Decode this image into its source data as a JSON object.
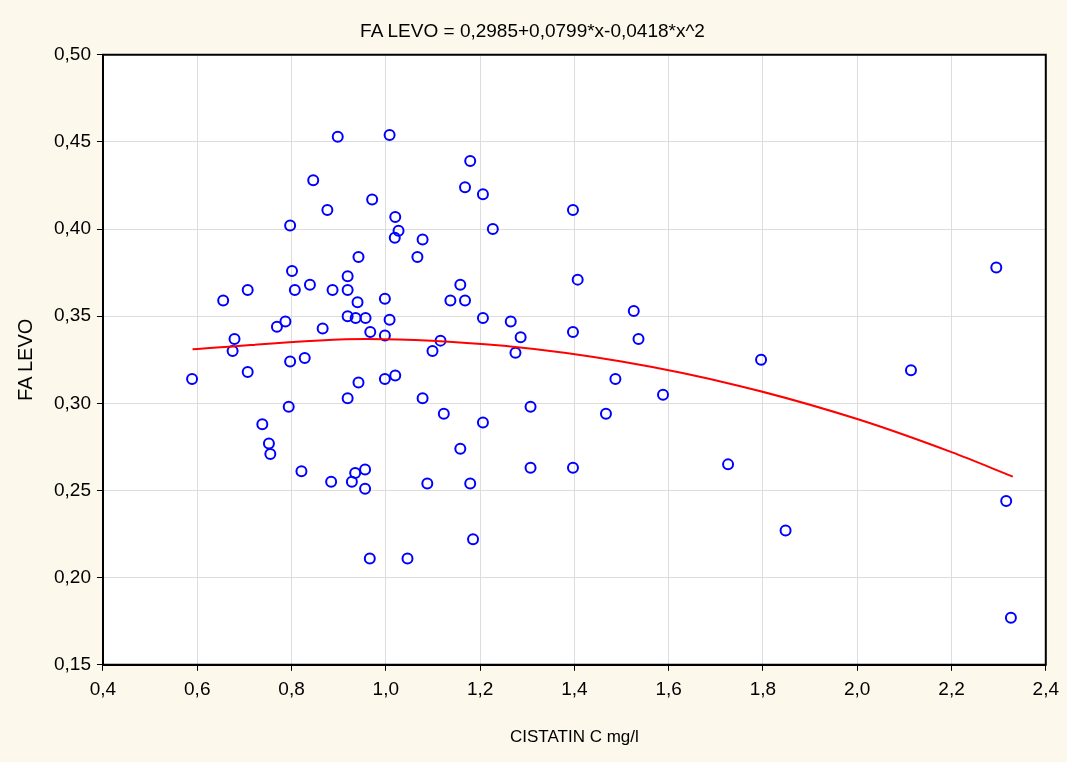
{
  "chart_data": {
    "type": "scatter",
    "title": "FA LEVO = 0,2985+0,0799*x-0,0418*x^2",
    "xlabel": "CISTATIN C mg/l",
    "ylabel": "FA LEVO",
    "xlim": [
      0.4,
      2.4
    ],
    "xticks": [
      {
        "value": 0.4,
        "label": "0,4"
      },
      {
        "value": 0.6,
        "label": "0,6"
      },
      {
        "value": 0.8,
        "label": "0,8"
      },
      {
        "value": 1.0,
        "label": "1,0"
      },
      {
        "value": 1.2,
        "label": "1,2"
      },
      {
        "value": 1.4,
        "label": "1,4"
      },
      {
        "value": 1.6,
        "label": "1,6"
      },
      {
        "value": 1.8,
        "label": "1,8"
      },
      {
        "value": 2.0,
        "label": "2,0"
      },
      {
        "value": 2.2,
        "label": "2,2"
      },
      {
        "value": 2.4,
        "label": "2,4"
      }
    ],
    "ylim": [
      0.15,
      0.5
    ],
    "yticks": [
      {
        "value": 0.15,
        "label": "0,15"
      },
      {
        "value": 0.2,
        "label": "0,20"
      },
      {
        "value": 0.25,
        "label": "0,25"
      },
      {
        "value": 0.3,
        "label": "0,30"
      },
      {
        "value": 0.35,
        "label": "0,35"
      },
      {
        "value": 0.4,
        "label": "0,40"
      },
      {
        "value": 0.45,
        "label": "0,45"
      },
      {
        "value": 0.5,
        "label": "0,50"
      }
    ],
    "grid": true,
    "legend": false,
    "marker": "circle",
    "series": [
      {
        "type": "scatter",
        "color": "#0000ff",
        "x": [
          0.898,
          1.008,
          0.846,
          0.971,
          0.876,
          1.02,
          0.797,
          1.027,
          1.019,
          1.078,
          0.942,
          1.067,
          0.801,
          0.919,
          0.707,
          0.807,
          0.839,
          0.887,
          0.919,
          0.655,
          0.94,
          0.998,
          0.919,
          0.936,
          0.957,
          1.008,
          0.769,
          0.787,
          0.866,
          0.967,
          0.998,
          1.116,
          0.679,
          0.675,
          1.099,
          0.797,
          0.828,
          0.589,
          0.707,
          0.998,
          1.02,
          0.942,
          0.919,
          1.078,
          0.794,
          0.738,
          1.123,
          0.752,
          0.755,
          0.821,
          0.884,
          0.928,
          0.935,
          0.956,
          0.956,
          1.088,
          0.966,
          1.046,
          1.179,
          1.168,
          1.206,
          1.397,
          1.227,
          1.407,
          1.158,
          1.137,
          1.168,
          1.526,
          1.206,
          1.265,
          1.286,
          1.397,
          1.536,
          1.275,
          1.487,
          1.588,
          1.307,
          1.467,
          1.206,
          1.158,
          1.307,
          1.397,
          1.726,
          1.179,
          1.185,
          2.295,
          1.796,
          2.114,
          2.316,
          1.848,
          2.326
        ],
        "values": [
          0.453,
          0.454,
          0.428,
          0.417,
          0.411,
          0.407,
          0.402,
          0.399,
          0.395,
          0.394,
          0.384,
          0.384,
          0.376,
          0.373,
          0.365,
          0.365,
          0.368,
          0.365,
          0.365,
          0.359,
          0.358,
          0.36,
          0.35,
          0.349,
          0.349,
          0.348,
          0.344,
          0.347,
          0.343,
          0.341,
          0.339,
          0.336,
          0.337,
          0.33,
          0.33,
          0.324,
          0.326,
          0.314,
          0.318,
          0.314,
          0.316,
          0.312,
          0.303,
          0.303,
          0.298,
          0.288,
          0.294,
          0.277,
          0.271,
          0.261,
          0.255,
          0.255,
          0.26,
          0.262,
          0.251,
          0.254,
          0.211,
          0.211,
          0.439,
          0.424,
          0.42,
          0.411,
          0.4,
          0.371,
          0.368,
          0.359,
          0.359,
          0.353,
          0.349,
          0.347,
          0.338,
          0.341,
          0.337,
          0.329,
          0.314,
          0.305,
          0.298,
          0.294,
          0.289,
          0.274,
          0.263,
          0.263,
          0.265,
          0.254,
          0.222,
          0.378,
          0.325,
          0.319,
          0.244,
          0.227,
          0.177
        ]
      },
      {
        "type": "line",
        "color": "#ff0000",
        "marker": "none",
        "x": [
          0.59,
          0.96,
          1.25,
          1.5,
          1.75,
          2.0,
          2.2,
          2.33
        ],
        "values": [
          0.331,
          0.337,
          0.333,
          0.324,
          0.31,
          0.291,
          0.272,
          0.258
        ]
      }
    ]
  }
}
